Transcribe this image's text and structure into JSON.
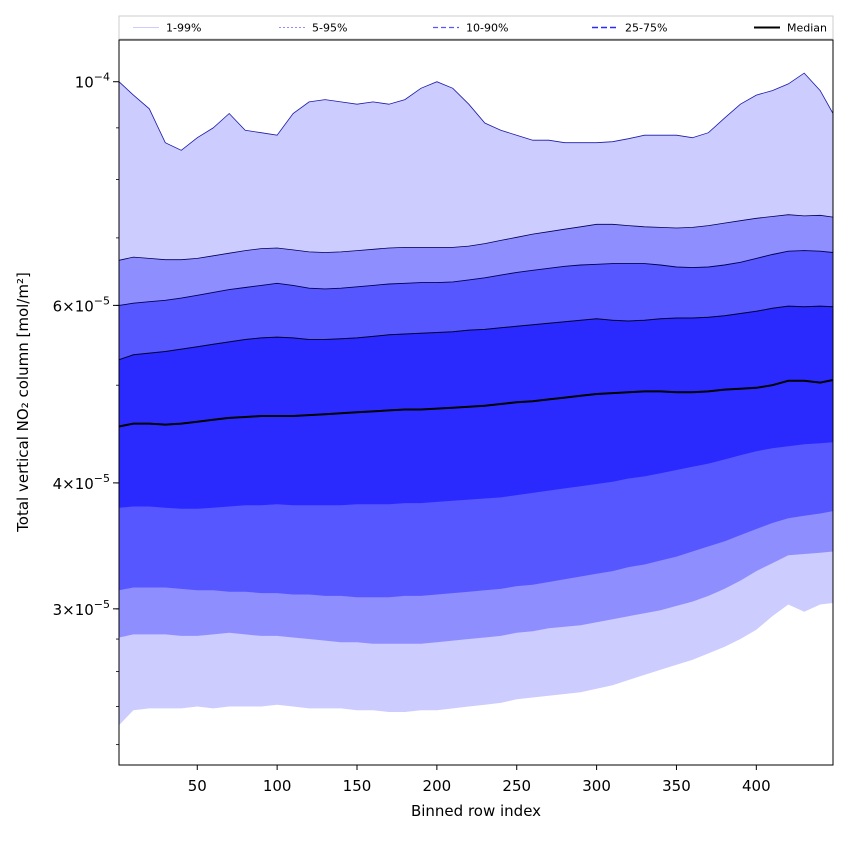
{
  "chart_data": {
    "type": "area",
    "xlabel": "Binned row index",
    "ylabel": "Total vertical NO₂ column [mol/m²]",
    "yscale": "log",
    "xlim": [
      1,
      448
    ],
    "ylim": [
      2.1e-05,
      0.00011
    ],
    "x_ticks": [
      50,
      100,
      150,
      200,
      250,
      300,
      350,
      400
    ],
    "y_ticks": [
      {
        "value": 3e-05,
        "mantissa": "3",
        "times": "×",
        "base": "10",
        "exp": "−5"
      },
      {
        "value": 4e-05,
        "mantissa": "4",
        "times": "×",
        "base": "10",
        "exp": "−5"
      },
      {
        "value": 6e-05,
        "mantissa": "6",
        "times": "×",
        "base": "10",
        "exp": "−5"
      },
      {
        "value": 0.0001,
        "mantissa": "",
        "times": "",
        "base": "10",
        "exp": "−4"
      }
    ],
    "x": [
      1,
      10,
      20,
      30,
      40,
      50,
      60,
      70,
      80,
      90,
      100,
      110,
      120,
      130,
      140,
      150,
      160,
      170,
      180,
      190,
      200,
      210,
      220,
      230,
      240,
      250,
      260,
      270,
      280,
      290,
      300,
      310,
      320,
      330,
      340,
      350,
      360,
      370,
      380,
      390,
      400,
      410,
      420,
      430,
      440,
      448
    ],
    "series": [
      {
        "name": "p1",
        "values": [
          2.3e-05,
          2.38e-05,
          2.39e-05,
          2.39e-05,
          2.39e-05,
          2.4e-05,
          2.39e-05,
          2.4e-05,
          2.4e-05,
          2.4e-05,
          2.41e-05,
          2.4e-05,
          2.39e-05,
          2.39e-05,
          2.39e-05,
          2.38e-05,
          2.38e-05,
          2.37e-05,
          2.37e-05,
          2.38e-05,
          2.38e-05,
          2.39e-05,
          2.4e-05,
          2.41e-05,
          2.42e-05,
          2.44e-05,
          2.45e-05,
          2.46e-05,
          2.47e-05,
          2.48e-05,
          2.5e-05,
          2.52e-05,
          2.55e-05,
          2.58e-05,
          2.61e-05,
          2.64e-05,
          2.67e-05,
          2.71e-05,
          2.75e-05,
          2.8e-05,
          2.86e-05,
          2.95e-05,
          3.03e-05,
          2.98e-05,
          3.03e-05,
          3.04e-05
        ]
      },
      {
        "name": "p5",
        "values": [
          2.81e-05,
          2.83e-05,
          2.83e-05,
          2.83e-05,
          2.82e-05,
          2.82e-05,
          2.83e-05,
          2.84e-05,
          2.83e-05,
          2.82e-05,
          2.82e-05,
          2.81e-05,
          2.8e-05,
          2.79e-05,
          2.78e-05,
          2.78e-05,
          2.77e-05,
          2.77e-05,
          2.77e-05,
          2.77e-05,
          2.78e-05,
          2.79e-05,
          2.8e-05,
          2.81e-05,
          2.82e-05,
          2.84e-05,
          2.85e-05,
          2.87e-05,
          2.88e-05,
          2.89e-05,
          2.91e-05,
          2.93e-05,
          2.95e-05,
          2.97e-05,
          2.99e-05,
          3.02e-05,
          3.05e-05,
          3.09e-05,
          3.14e-05,
          3.2e-05,
          3.27e-05,
          3.33e-05,
          3.39e-05,
          3.4e-05,
          3.41e-05,
          3.42e-05
        ]
      },
      {
        "name": "p10",
        "values": [
          3.13e-05,
          3.15e-05,
          3.15e-05,
          3.15e-05,
          3.14e-05,
          3.13e-05,
          3.13e-05,
          3.12e-05,
          3.12e-05,
          3.11e-05,
          3.11e-05,
          3.1e-05,
          3.1e-05,
          3.09e-05,
          3.09e-05,
          3.08e-05,
          3.08e-05,
          3.08e-05,
          3.09e-05,
          3.09e-05,
          3.1e-05,
          3.11e-05,
          3.12e-05,
          3.13e-05,
          3.14e-05,
          3.16e-05,
          3.17e-05,
          3.19e-05,
          3.21e-05,
          3.23e-05,
          3.25e-05,
          3.27e-05,
          3.3e-05,
          3.32e-05,
          3.35e-05,
          3.38e-05,
          3.42e-05,
          3.46e-05,
          3.5e-05,
          3.55e-05,
          3.6e-05,
          3.65e-05,
          3.69e-05,
          3.71e-05,
          3.73e-05,
          3.75e-05
        ]
      },
      {
        "name": "p25",
        "values": [
          3.78e-05,
          3.79e-05,
          3.79e-05,
          3.78e-05,
          3.77e-05,
          3.77e-05,
          3.78e-05,
          3.79e-05,
          3.8e-05,
          3.8e-05,
          3.81e-05,
          3.8e-05,
          3.8e-05,
          3.8e-05,
          3.8e-05,
          3.81e-05,
          3.81e-05,
          3.81e-05,
          3.82e-05,
          3.82e-05,
          3.83e-05,
          3.84e-05,
          3.85e-05,
          3.86e-05,
          3.87e-05,
          3.89e-05,
          3.91e-05,
          3.93e-05,
          3.95e-05,
          3.97e-05,
          3.99e-05,
          4.01e-05,
          4.04e-05,
          4.06e-05,
          4.09e-05,
          4.12e-05,
          4.15e-05,
          4.18e-05,
          4.22e-05,
          4.26e-05,
          4.3e-05,
          4.33e-05,
          4.35e-05,
          4.37e-05,
          4.38e-05,
          4.39e-05
        ]
      },
      {
        "name": "p50",
        "values": [
          4.55e-05,
          4.58e-05,
          4.58e-05,
          4.57e-05,
          4.58e-05,
          4.6e-05,
          4.62e-05,
          4.64e-05,
          4.65e-05,
          4.66e-05,
          4.66e-05,
          4.66e-05,
          4.67e-05,
          4.68e-05,
          4.69e-05,
          4.7e-05,
          4.71e-05,
          4.72e-05,
          4.73e-05,
          4.73e-05,
          4.74e-05,
          4.75e-05,
          4.76e-05,
          4.77e-05,
          4.79e-05,
          4.81e-05,
          4.82e-05,
          4.84e-05,
          4.86e-05,
          4.88e-05,
          4.9e-05,
          4.91e-05,
          4.92e-05,
          4.93e-05,
          4.93e-05,
          4.92e-05,
          4.92e-05,
          4.93e-05,
          4.95e-05,
          4.96e-05,
          4.97e-05,
          5e-05,
          5.05e-05,
          5.05e-05,
          5.03e-05,
          5.06e-05
        ]
      },
      {
        "name": "p75",
        "values": [
          5.3e-05,
          5.36e-05,
          5.38e-05,
          5.4e-05,
          5.43e-05,
          5.46e-05,
          5.49e-05,
          5.52e-05,
          5.55e-05,
          5.57e-05,
          5.58e-05,
          5.57e-05,
          5.55e-05,
          5.55e-05,
          5.56e-05,
          5.57e-05,
          5.59e-05,
          5.61e-05,
          5.62e-05,
          5.63e-05,
          5.64e-05,
          5.65e-05,
          5.67e-05,
          5.68e-05,
          5.7e-05,
          5.72e-05,
          5.74e-05,
          5.76e-05,
          5.78e-05,
          5.8e-05,
          5.82e-05,
          5.8e-05,
          5.79e-05,
          5.8e-05,
          5.82e-05,
          5.83e-05,
          5.83e-05,
          5.84e-05,
          5.86e-05,
          5.89e-05,
          5.92e-05,
          5.96e-05,
          5.99e-05,
          5.98e-05,
          5.99e-05,
          5.98e-05
        ]
      },
      {
        "name": "p90",
        "values": [
          6e-05,
          6.03e-05,
          6.05e-05,
          6.07e-05,
          6.1e-05,
          6.14e-05,
          6.18e-05,
          6.22e-05,
          6.25e-05,
          6.28e-05,
          6.31e-05,
          6.28e-05,
          6.24e-05,
          6.23e-05,
          6.24e-05,
          6.26e-05,
          6.28e-05,
          6.3e-05,
          6.31e-05,
          6.32e-05,
          6.32e-05,
          6.33e-05,
          6.36e-05,
          6.39e-05,
          6.43e-05,
          6.47e-05,
          6.5e-05,
          6.53e-05,
          6.56e-05,
          6.58e-05,
          6.59e-05,
          6.6e-05,
          6.6e-05,
          6.6e-05,
          6.58e-05,
          6.55e-05,
          6.54e-05,
          6.55e-05,
          6.58e-05,
          6.62e-05,
          6.68e-05,
          6.74e-05,
          6.79e-05,
          6.8e-05,
          6.79e-05,
          6.77e-05
        ]
      },
      {
        "name": "p95",
        "values": [
          6.65e-05,
          6.7e-05,
          6.68e-05,
          6.66e-05,
          6.66e-05,
          6.68e-05,
          6.72e-05,
          6.76e-05,
          6.8e-05,
          6.83e-05,
          6.84e-05,
          6.81e-05,
          6.78e-05,
          6.77e-05,
          6.78e-05,
          6.8e-05,
          6.82e-05,
          6.84e-05,
          6.85e-05,
          6.85e-05,
          6.85e-05,
          6.85e-05,
          6.87e-05,
          6.91e-05,
          6.96e-05,
          7.01e-05,
          7.06e-05,
          7.1e-05,
          7.14e-05,
          7.18e-05,
          7.22e-05,
          7.22e-05,
          7.2e-05,
          7.18e-05,
          7.17e-05,
          7.16e-05,
          7.17e-05,
          7.2e-05,
          7.24e-05,
          7.28e-05,
          7.32e-05,
          7.35e-05,
          7.38e-05,
          7.36e-05,
          7.37e-05,
          7.34e-05
        ]
      },
      {
        "name": "p99",
        "values": [
          0.0001,
          9.7e-05,
          9.4e-05,
          8.7e-05,
          8.55e-05,
          8.8e-05,
          9e-05,
          9.3e-05,
          8.95e-05,
          8.9e-05,
          8.85e-05,
          9.3e-05,
          9.55e-05,
          9.6e-05,
          9.55e-05,
          9.5e-05,
          9.55e-05,
          9.5e-05,
          9.6e-05,
          9.85e-05,
          0.0001,
          9.85e-05,
          9.5e-05,
          9.1e-05,
          8.95e-05,
          8.85e-05,
          8.75e-05,
          8.75e-05,
          8.7e-05,
          8.7e-05,
          8.7e-05,
          8.72e-05,
          8.78e-05,
          8.85e-05,
          8.85e-05,
          8.85e-05,
          8.8e-05,
          8.9e-05,
          9.2e-05,
          9.5e-05,
          9.7e-05,
          9.8e-05,
          9.95e-05,
          0.000102,
          9.8e-05,
          9.3e-05
        ]
      }
    ],
    "bands": [
      {
        "name": "1-99%",
        "lower": "p1",
        "upper": "p99",
        "color": "#ccccff"
      },
      {
        "name": "5-95%",
        "lower": "p5",
        "upper": "p95",
        "color": "#8e8eff"
      },
      {
        "name": "10-90%",
        "lower": "p10",
        "upper": "p90",
        "color": "#5757ff"
      },
      {
        "name": "25-75%",
        "lower": "p25",
        "upper": "p75",
        "color": "#2a2aff"
      }
    ],
    "legend": [
      {
        "label": "1-99%",
        "color": "#ccccff",
        "dash": "none",
        "width": 1
      },
      {
        "label": "5-95%",
        "color": "#8e8eff",
        "dash": "2 2",
        "width": 1
      },
      {
        "label": "10-90%",
        "color": "#5757ff",
        "dash": "5 3",
        "width": 1.2
      },
      {
        "label": "25-75%",
        "color": "#2a2aff",
        "dash": "6 3",
        "width": 1.5
      },
      {
        "label": "Median",
        "color": "#000000",
        "dash": "none",
        "width": 2
      }
    ],
    "legend_position": "top",
    "median_color": "#000000",
    "grid": false
  }
}
